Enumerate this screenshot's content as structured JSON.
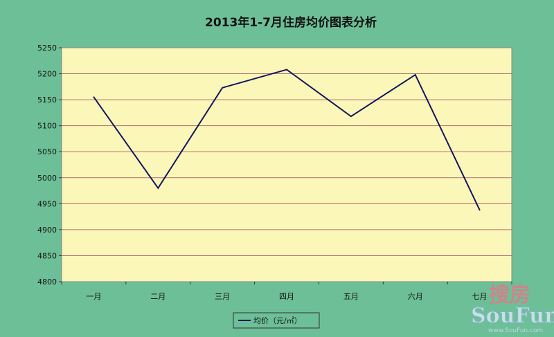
{
  "chart_data": {
    "type": "line",
    "title": "2013年1-7月住房均价图表分析",
    "categories": [
      "一月",
      "二月",
      "三月",
      "四月",
      "五月",
      "六月",
      "七月"
    ],
    "series": [
      {
        "name": "均价（元/㎡）",
        "values": [
          5155,
          4980,
          5173,
          5208,
          5118,
          5198,
          4938
        ]
      }
    ],
    "ylim": [
      4800,
      5250
    ],
    "yticks": [
      4800,
      4850,
      4900,
      4950,
      5000,
      5050,
      5100,
      5150,
      5200,
      5250
    ],
    "grid": true,
    "legend_position": "bottom",
    "colors": {
      "background": "#6dbf97",
      "plot_area": "#fbf7b9",
      "gridline": "#b37070",
      "series_line": "#14145e"
    }
  },
  "watermark": {
    "cn": "搜房",
    "en": "SouFun",
    "url": "www.SouFun.com"
  }
}
